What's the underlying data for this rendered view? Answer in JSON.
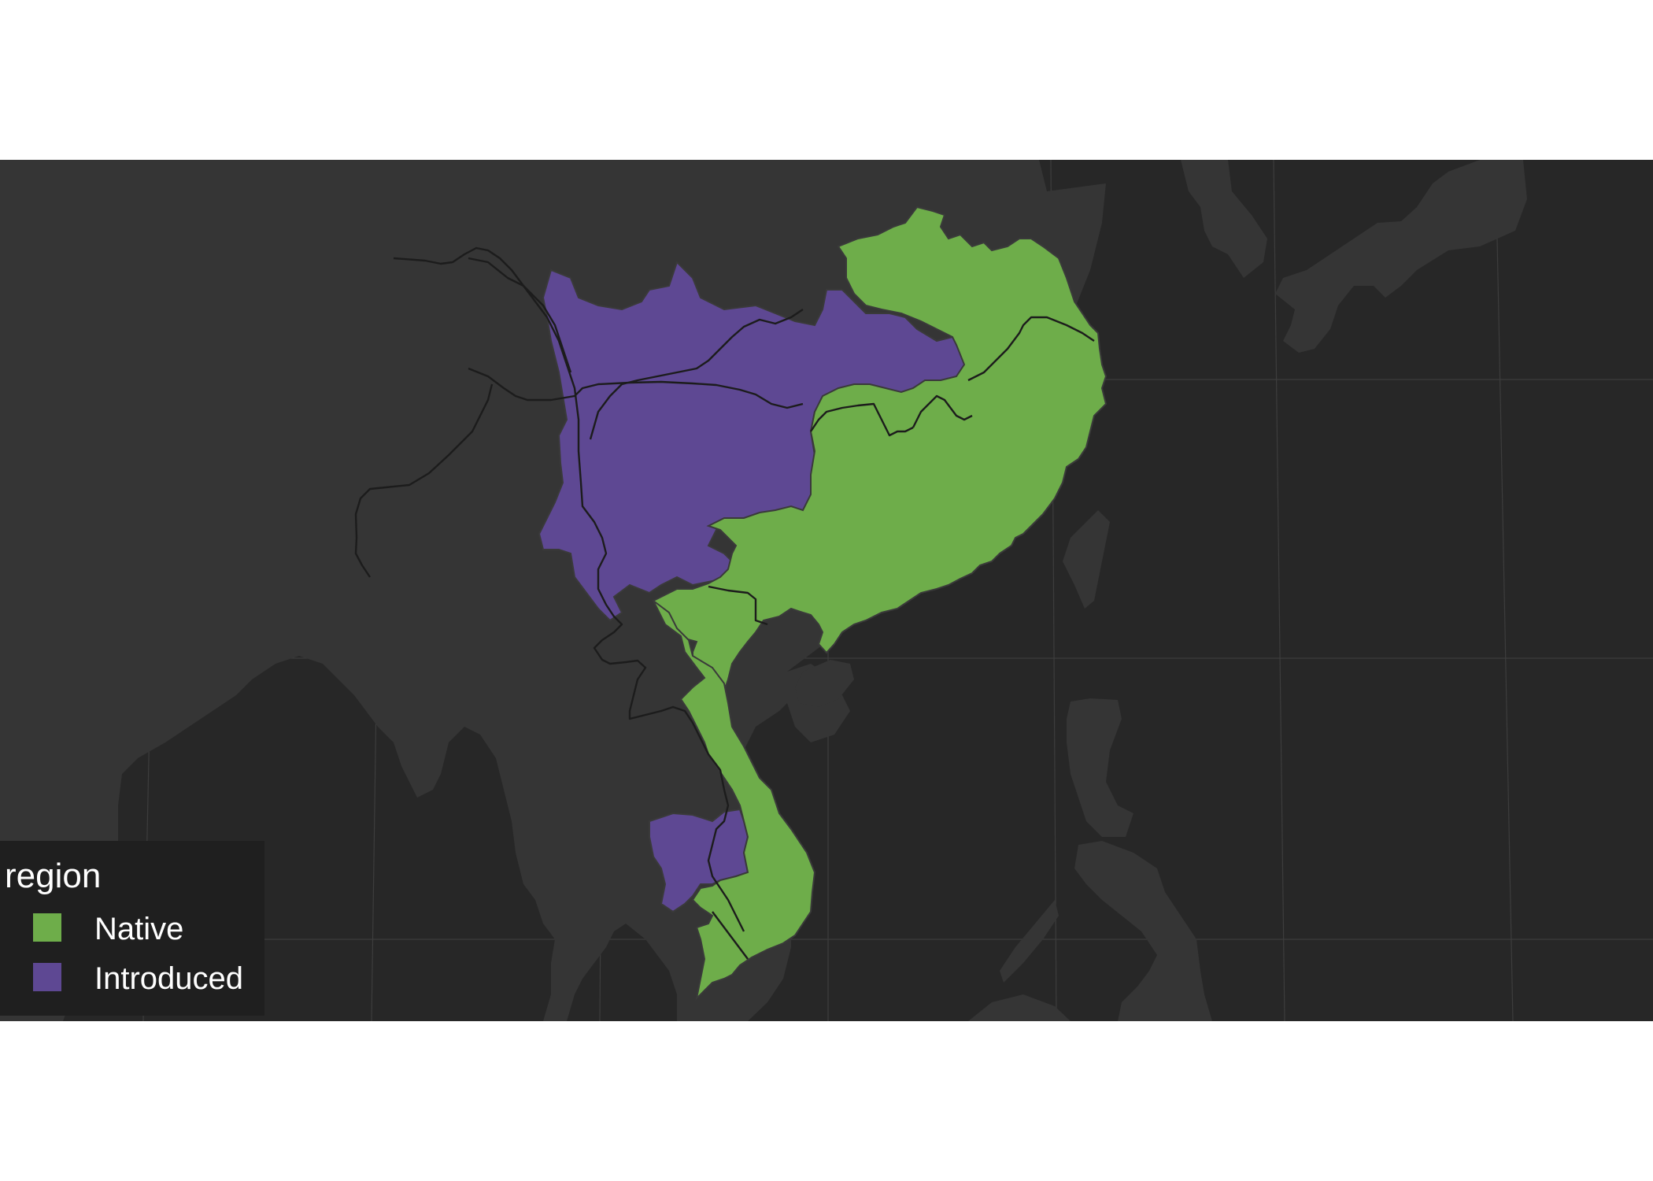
{
  "map": {
    "panel_background": "#272727",
    "land_color": "#353535",
    "graticule_color": "#3d3d3d",
    "border_color": "#1c1c1c"
  },
  "regions": [
    {
      "name": "native",
      "label": "Native",
      "color": "#6ead4a"
    },
    {
      "name": "introduced",
      "label": "Introduced",
      "color": "#5e4893"
    }
  ],
  "legend": {
    "title": "region",
    "background": "#1f1f1f",
    "items": [
      {
        "label": "Native",
        "color": "#6ead4a"
      },
      {
        "label": "Introduced",
        "color": "#5e4893"
      }
    ]
  }
}
